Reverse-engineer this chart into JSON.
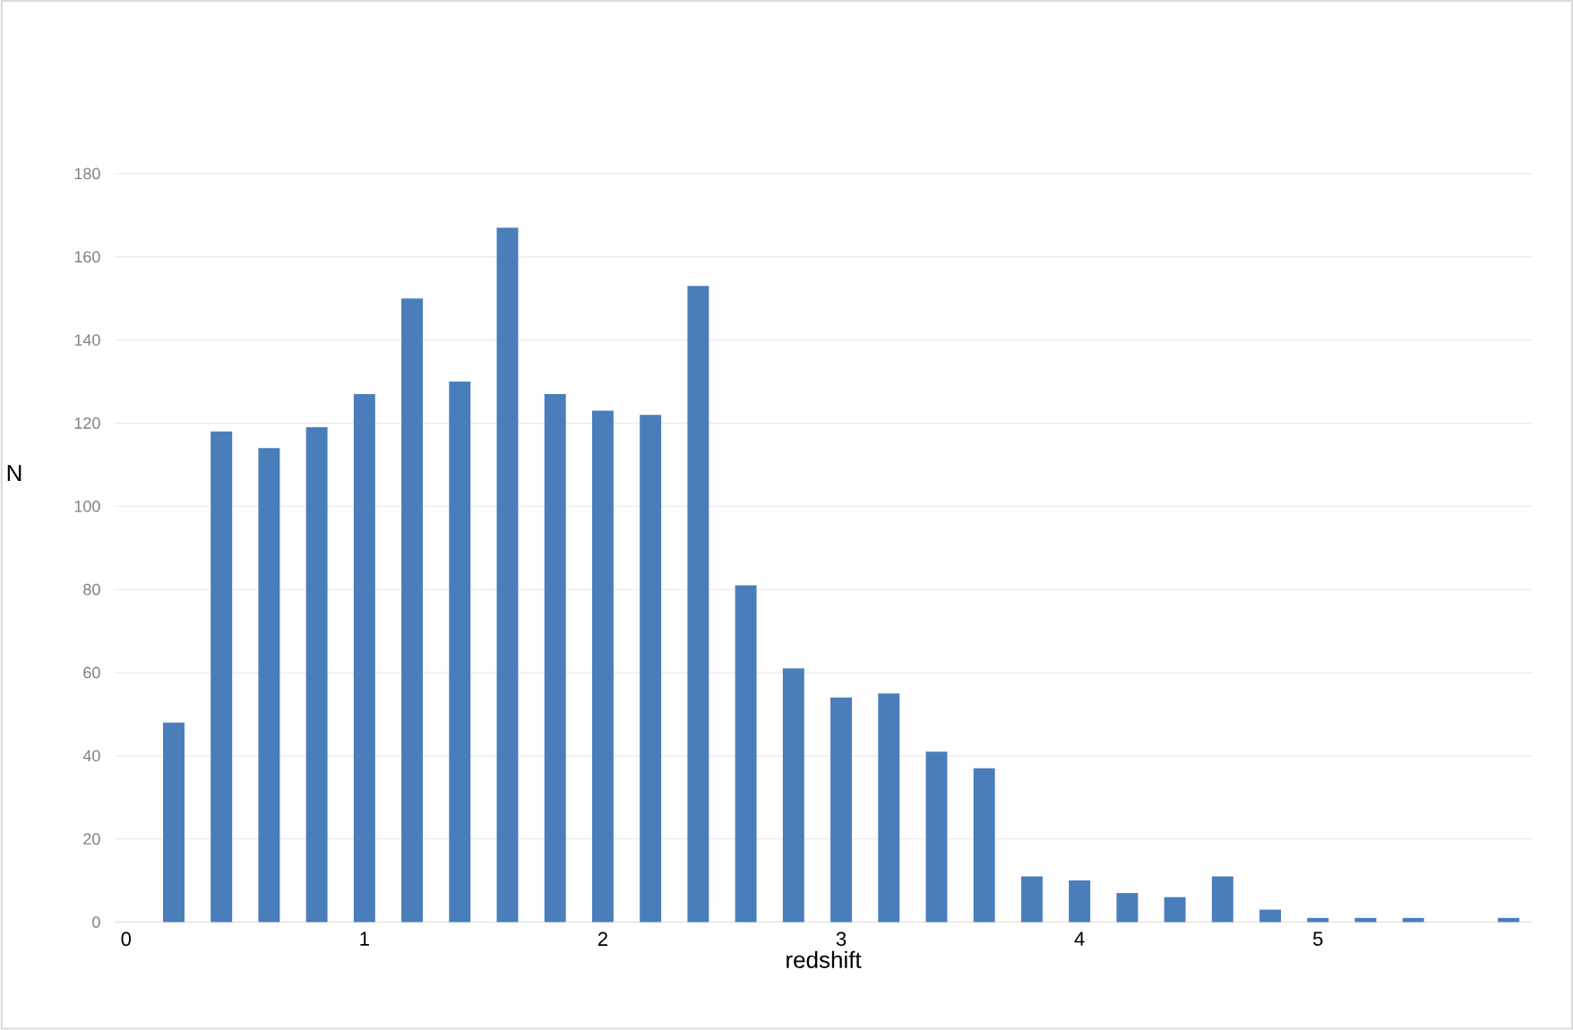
{
  "chart_data": {
    "type": "bar",
    "xlabel": "redshift",
    "ylabel": "N",
    "color": "#4a7ebb",
    "x": [
      0.2,
      0.4,
      0.6,
      0.8,
      1.0,
      1.2,
      1.4,
      1.6,
      1.8,
      2.0,
      2.2,
      2.4,
      2.6,
      2.8,
      3.0,
      3.2,
      3.4,
      3.6,
      3.8,
      4.0,
      4.2,
      4.4,
      4.6,
      4.8,
      5.0,
      5.2,
      5.4,
      5.6,
      5.8
    ],
    "values": [
      48,
      118,
      114,
      119,
      127,
      150,
      130,
      167,
      127,
      123,
      122,
      153,
      81,
      61,
      54,
      55,
      41,
      37,
      11,
      10,
      7,
      6,
      11,
      3,
      1,
      1,
      1,
      0,
      1
    ],
    "xlim": [
      -0.05,
      5.9
    ],
    "xticks": [
      0,
      1,
      2,
      3,
      4,
      5
    ],
    "ylim": [
      0,
      180
    ],
    "yticks": [
      0,
      20,
      40,
      60,
      80,
      100,
      120,
      140,
      160,
      180
    ],
    "grid": "y"
  }
}
